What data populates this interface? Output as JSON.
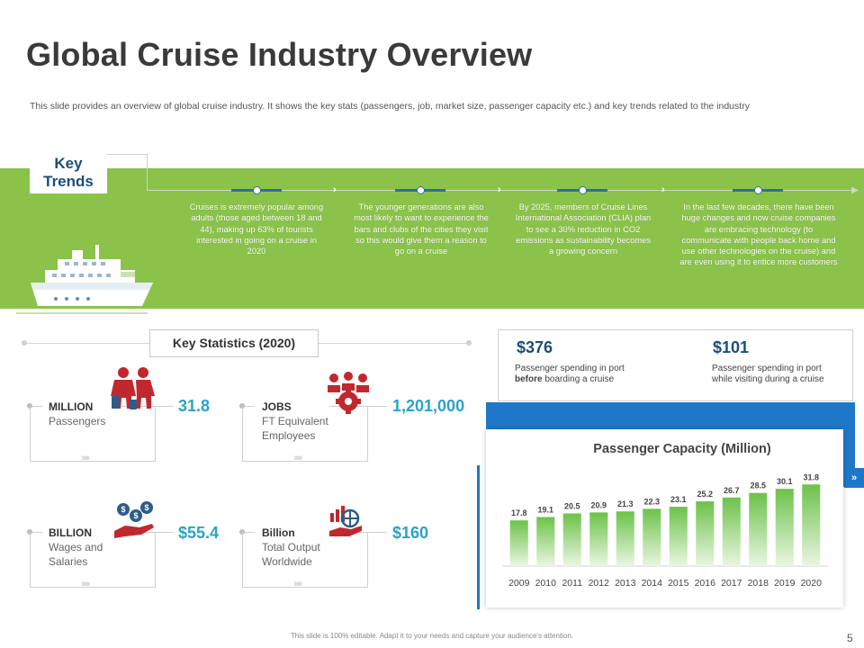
{
  "header": {
    "title": "Global Cruise Industry Overview",
    "subtitle": "This slide provides an overview of global cruise industry. It shows the key stats (passengers, job, market size, passenger capacity etc.) and key trends related to the industry"
  },
  "key_trends": {
    "label_line1": "Key",
    "label_line2": "Trends",
    "items": [
      "Cruises is extremely popular among adults (those aged between 18 and 44), making up 63% of tourists interested in going on a cruise in 2020",
      "The younger generations are also most likely to want to experience the bars and clubs of the cities they visit so this would give them a reason to go on a cruise",
      "By 2025, members of Cruise Lines International Association (CLIA) plan to see a 30% reduction in CO2 emissions as sustainability becomes a growing concern",
      "In the last few decades, there have been huge changes and now cruise companies are embracing technology (to communicate with people back home and use other technologies on the cruise) and are even using it to entice more customers"
    ]
  },
  "key_statistics": {
    "heading": "Key Statistics (2020)",
    "cards": [
      {
        "unit": "MILLION",
        "desc": "Passengers",
        "value": "31.8",
        "icon": "family-icon"
      },
      {
        "unit": "JOBS",
        "desc": "FT Equivalent Employees",
        "value": "1,201,000",
        "icon": "team-gear-icon"
      },
      {
        "unit": "BILLION",
        "desc": "Wages and Salaries",
        "value": "$55.4",
        "icon": "money-hand-icon"
      },
      {
        "unit": "Billion",
        "desc": "Total Output Worldwide",
        "value": "$160",
        "icon": "globe-chart-icon"
      }
    ]
  },
  "spending": {
    "before_value": "$376",
    "before_text_1": "Passenger spending in port",
    "before_text_bold": "before",
    "before_text_2": " boarding a cruise",
    "during_value": "$101",
    "during_text_1": "Passenger spending in port",
    "during_text_2": "while visiting during a cruise"
  },
  "chart_data": {
    "type": "bar",
    "title": "Passenger Capacity (Million)",
    "categories": [
      "2009",
      "2010",
      "2011",
      "2012",
      "2013",
      "2014",
      "2015",
      "2016",
      "2017",
      "2018",
      "2019",
      "2020"
    ],
    "values": [
      17.8,
      19.1,
      20.5,
      20.9,
      21.3,
      22.3,
      23.1,
      25.2,
      26.7,
      28.5,
      30.1,
      31.8
    ],
    "xlabel": "",
    "ylabel": "",
    "ylim": [
      0,
      34
    ],
    "grid": false,
    "colors": {
      "bar_top": "#6cc24a",
      "bar_bottom": "#eaf6e2"
    }
  },
  "footer": {
    "note": "This slide is 100% editable. Adapt it to your needs and capture your audience's attention.",
    "page": "5"
  },
  "colors": {
    "band": "#8bc34a",
    "navy": "#1a4d7a",
    "value_blue": "#2aa3c6",
    "panel_blue": "#1f78c7",
    "icon_red": "#c0282d"
  }
}
